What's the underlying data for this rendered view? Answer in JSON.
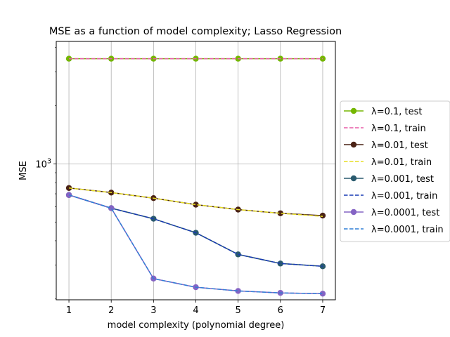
{
  "chart_data": {
    "type": "line",
    "title": "MSE as a function of model complexity; Lasso Regression",
    "xlabel": "model complexity (polynomial degree)",
    "ylabel": "MSE",
    "yscale": "log",
    "x": [
      1,
      2,
      3,
      4,
      5,
      6,
      7
    ],
    "xlim": [
      0.7,
      7.3
    ],
    "ylim": [
      198,
      4300
    ],
    "xticks": [
      "1",
      "2",
      "3",
      "4",
      "5",
      "6",
      "7"
    ],
    "yticks": [
      {
        "value": 1000,
        "base": "10",
        "exp": "3"
      }
    ],
    "grid": true,
    "legend_position": "center-right outside",
    "series": [
      {
        "name": "λ=0.1, test",
        "lambda": "0.1",
        "set": "test",
        "color": "#74b600",
        "style": "solid",
        "marker": true,
        "values": [
          3500,
          3500,
          3500,
          3500,
          3500,
          3500,
          3500
        ]
      },
      {
        "name": "λ=0.1, train",
        "lambda": "0.1",
        "set": "train",
        "color": "#e75ba7",
        "style": "dashed",
        "marker": false,
        "values": [
          3500,
          3500,
          3500,
          3500,
          3500,
          3500,
          3500
        ]
      },
      {
        "name": "λ=0.01, test",
        "lambda": "0.01",
        "set": "test",
        "color": "#4a2215",
        "style": "solid",
        "marker": true,
        "values": [
          750,
          710,
          665,
          615,
          580,
          555,
          540
        ]
      },
      {
        "name": "λ=0.01, train",
        "lambda": "0.01",
        "set": "train",
        "color": "#e6dd22",
        "style": "dashed",
        "marker": false,
        "values": [
          750,
          710,
          665,
          615,
          580,
          555,
          535
        ]
      },
      {
        "name": "λ=0.001, test",
        "lambda": "0.001",
        "set": "test",
        "color": "#2a5a6e",
        "style": "solid",
        "marker": true,
        "values": [
          690,
          590,
          520,
          440,
          340,
          305,
          295
        ]
      },
      {
        "name": "λ=0.001, train",
        "lambda": "0.001",
        "set": "train",
        "color": "#1638b4",
        "style": "dashed",
        "marker": false,
        "values": [
          690,
          590,
          520,
          440,
          340,
          305,
          295
        ]
      },
      {
        "name": "λ=0.0001, test",
        "lambda": "0.0001",
        "set": "test",
        "color": "#8463c4",
        "style": "solid",
        "marker": true,
        "values": [
          690,
          590,
          255,
          230,
          220,
          215,
          213
        ]
      },
      {
        "name": "λ=0.0001, train",
        "lambda": "0.0001",
        "set": "train",
        "color": "#2f7fd6",
        "style": "dashed",
        "marker": false,
        "values": [
          690,
          590,
          255,
          230,
          220,
          215,
          213
        ]
      }
    ]
  }
}
